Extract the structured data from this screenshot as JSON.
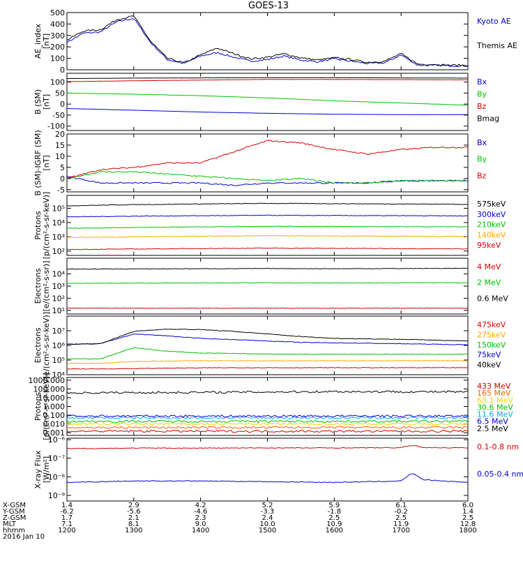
{
  "title": "GOES-13",
  "colors": {
    "black": "#000000",
    "blue": "#0000d0",
    "red": "#d00000",
    "green": "#00c000",
    "orange": "#ffa500",
    "yellow": "#e8d800",
    "cyan": "#00b0e0",
    "purple": "#8000a0"
  },
  "x_axis": {
    "row_labels": [
      "X-GSM",
      "Y-GSM",
      "Z-GSM",
      "MLT",
      "hhmm",
      "2016 Jan 10"
    ],
    "columns": [
      {
        "x": 1.4,
        "y": -6.2,
        "z": 1.7,
        "mlt": 7.1,
        "hhmm": "1200"
      },
      {
        "x": 2.9,
        "y": -5.6,
        "z": 2.1,
        "mlt": 8.1,
        "hhmm": "1300"
      },
      {
        "x": 4.2,
        "y": -4.6,
        "z": 2.3,
        "mlt": 9.0,
        "hhmm": "1400"
      },
      {
        "x": 5.2,
        "y": -3.3,
        "z": 2.4,
        "mlt": 10.0,
        "hhmm": "1500"
      },
      {
        "x": 5.9,
        "y": -1.8,
        "z": 2.5,
        "mlt": 10.9,
        "hhmm": "1600"
      },
      {
        "x": 6.1,
        "y": -0.2,
        "z": 2.5,
        "mlt": 11.9,
        "hhmm": "1700"
      },
      {
        "x": 6.0,
        "y": 1.4,
        "z": 2.5,
        "mlt": 12.8,
        "hhmm": "1800"
      }
    ]
  },
  "chart_data": [
    {
      "type": "line",
      "ylabel": "AE_index\n[nT]",
      "ylim": [
        0,
        500
      ],
      "scale": "linear",
      "yticks": [
        "0",
        "100",
        "200",
        "300",
        "400",
        "500"
      ],
      "series": [
        {
          "name": "Kyoto AE",
          "color": "#0000d0",
          "x": [
            1200,
            1215,
            1230,
            1245,
            1300,
            1315,
            1330,
            1345,
            1400,
            1415,
            1430,
            1445,
            1500,
            1515,
            1530,
            1545,
            1600,
            1615,
            1630,
            1645,
            1700,
            1715,
            1730,
            1745,
            1800
          ],
          "values": [
            240,
            320,
            330,
            420,
            450,
            240,
            90,
            55,
            120,
            150,
            110,
            75,
            90,
            120,
            85,
            70,
            95,
            75,
            55,
            60,
            130,
            40,
            40,
            35,
            35
          ]
        },
        {
          "name": "Themis AE",
          "color": "#000000",
          "x": [
            1200,
            1215,
            1230,
            1245,
            1300,
            1315,
            1330,
            1345,
            1400,
            1415,
            1430,
            1445,
            1500,
            1515,
            1530,
            1545,
            1600,
            1615,
            1630,
            1645,
            1700,
            1715,
            1730,
            1745,
            1800
          ],
          "values": [
            260,
            340,
            350,
            440,
            470,
            250,
            100,
            60,
            130,
            190,
            140,
            95,
            110,
            140,
            105,
            85,
            105,
            90,
            65,
            75,
            140,
            50,
            45,
            40,
            40
          ]
        }
      ]
    },
    {
      "type": "line",
      "ylabel": "B (SM)\n[nT]",
      "ylim": [
        -120,
        140
      ],
      "scale": "linear",
      "yticks": [
        "-100",
        "-50",
        "0",
        "50",
        "100"
      ],
      "series": [
        {
          "name": "Bx",
          "color": "#0000d0",
          "x": [
            1200,
            1300,
            1400,
            1500,
            1600,
            1700,
            1800
          ],
          "values": [
            -20,
            -28,
            -36,
            -42,
            -46,
            -48,
            -48
          ]
        },
        {
          "name": "By",
          "color": "#00c000",
          "x": [
            1200,
            1300,
            1400,
            1500,
            1600,
            1700,
            1800
          ],
          "values": [
            50,
            45,
            38,
            28,
            15,
            5,
            -5
          ]
        },
        {
          "name": "Bz",
          "color": "#d00000",
          "x": [
            1200,
            1300,
            1400,
            1500,
            1600,
            1700,
            1800
          ],
          "values": [
            102,
            106,
            109,
            112,
            112,
            111,
            110
          ]
        },
        {
          "name": "Bmag",
          "color": "#000000",
          "x": [
            1200,
            1300,
            1400,
            1500,
            1600,
            1700,
            1800
          ],
          "values": [
            116,
            118,
            119,
            120,
            120,
            119,
            118
          ]
        }
      ]
    },
    {
      "type": "line",
      "ylabel": "B (SM)-IGRF (SM)\n[nT]",
      "ylim": [
        -6,
        20
      ],
      "scale": "linear",
      "yticks": [
        "-5",
        "0",
        "5",
        "10",
        "15",
        "20"
      ],
      "series": [
        {
          "name": "Bx",
          "color": "#0000d0",
          "x": [
            1200,
            1230,
            1300,
            1330,
            1400,
            1430,
            1500,
            1530,
            1600,
            1630,
            1700,
            1730,
            1800
          ],
          "values": [
            1,
            -2,
            -2,
            -2,
            -2,
            -3,
            -2,
            -2,
            -2,
            -2,
            -1,
            -1,
            -1
          ]
        },
        {
          "name": "By",
          "color": "#00c000",
          "x": [
            1200,
            1230,
            1300,
            1330,
            1400,
            1430,
            1500,
            1530,
            1600,
            1630,
            1700,
            1730,
            1800
          ],
          "values": [
            0,
            3,
            3,
            2,
            1,
            0,
            -1,
            0,
            -2,
            -2,
            -1,
            -1,
            -1
          ]
        },
        {
          "name": "Bz",
          "color": "#d00000",
          "x": [
            1200,
            1230,
            1300,
            1330,
            1400,
            1430,
            1500,
            1530,
            1600,
            1630,
            1700,
            1730,
            1800
          ],
          "values": [
            0,
            4,
            5,
            7,
            7,
            12,
            17,
            16,
            13,
            11,
            13,
            14,
            14
          ]
        }
      ]
    },
    {
      "type": "line",
      "ylabel": "Protons\n[p/(cm²-s-sr-keV)]",
      "ylim": [
        50,
        800000
      ],
      "scale": "log",
      "yticks": [
        "10²",
        "10³",
        "10⁴",
        "10⁵"
      ],
      "series": [
        {
          "name": "575keV",
          "color": "#000000",
          "x": [
            1200,
            1300,
            1400,
            1500,
            1600,
            1700,
            1800
          ],
          "values": [
            150000,
            180000,
            200000,
            220000,
            210000,
            200000,
            190000
          ]
        },
        {
          "name": "300keV",
          "color": "#0000d0",
          "x": [
            1200,
            1300,
            1400,
            1500,
            1600,
            1700,
            1800
          ],
          "values": [
            25000,
            28000,
            30000,
            32000,
            31000,
            30000,
            29000
          ]
        },
        {
          "name": "210keV",
          "color": "#00c000",
          "x": [
            1200,
            1300,
            1400,
            1500,
            1600,
            1700,
            1800
          ],
          "values": [
            4000,
            4500,
            5000,
            5500,
            5300,
            5100,
            5000
          ]
        },
        {
          "name": "140keV",
          "color": "#ffa500",
          "x": [
            1200,
            1300,
            1400,
            1500,
            1600,
            1700,
            1800
          ],
          "values": [
            900,
            1000,
            1100,
            1200,
            1150,
            1100,
            1050
          ]
        },
        {
          "name": "95keV",
          "color": "#d00000",
          "x": [
            1200,
            1300,
            1400,
            1500,
            1600,
            1700,
            1800
          ],
          "values": [
            130,
            140,
            150,
            160,
            155,
            150,
            145
          ]
        }
      ]
    },
    {
      "type": "line",
      "ylabel": "Electrons\n[e/(cm²-s-sr)]",
      "ylim": [
        5,
        200000
      ],
      "scale": "log",
      "yticks": [
        "10¹",
        "10²",
        "10³",
        "10⁴"
      ],
      "series": [
        {
          "name": "4 MeV",
          "color": "#d00000",
          "x": [
            1200,
            1300,
            1400,
            1500,
            1600,
            1700,
            1800
          ],
          "values": [
            15,
            15,
            15,
            15,
            15,
            15,
            15
          ]
        },
        {
          "name": "2 MeV",
          "color": "#00c000",
          "x": [
            1200,
            1300,
            1400,
            1500,
            1600,
            1700,
            1800
          ],
          "values": [
            1700,
            1750,
            1800,
            1850,
            1800,
            1850,
            1900
          ]
        },
        {
          "name": "0.6 MeV",
          "color": "#000000",
          "x": [
            1200,
            1300,
            1400,
            1500,
            1600,
            1700,
            1800
          ],
          "values": [
            25000,
            26000,
            27000,
            28000,
            27000,
            28000,
            29000
          ]
        }
      ]
    },
    {
      "type": "line",
      "ylabel": "Electrons\n[e/(cm²-s-sr-keV)]",
      "ylim": [
        10000,
        100000000
      ],
      "scale": "log",
      "yticks": [
        "10⁴",
        "10⁵",
        "10⁶",
        "10⁷"
      ],
      "series": [
        {
          "name": "475keV",
          "color": "#d00000",
          "x": [
            1200,
            1230,
            1300,
            1330,
            1400,
            1430,
            1500,
            1530,
            1600,
            1630,
            1700,
            1730,
            1800
          ],
          "values": [
            25000,
            25000,
            26000,
            28000,
            29000,
            30000,
            30000,
            30000,
            30000,
            30000,
            30000,
            30000,
            30000
          ]
        },
        {
          "name": "275keV",
          "color": "#ffa500",
          "x": [
            1200,
            1230,
            1300,
            1330,
            1400,
            1430,
            1500,
            1530,
            1600,
            1630,
            1700,
            1730,
            1800
          ],
          "values": [
            60000,
            60000,
            80000,
            85000,
            90000,
            90000,
            90000,
            90000,
            90000,
            90000,
            90000,
            90000,
            90000
          ]
        },
        {
          "name": "150keV",
          "color": "#00c000",
          "x": [
            1200,
            1230,
            1300,
            1330,
            1400,
            1430,
            1500,
            1530,
            1600,
            1630,
            1700,
            1730,
            1800
          ],
          "values": [
            120000,
            120000,
            700000,
            400000,
            300000,
            280000,
            260000,
            250000,
            250000,
            250000,
            250000,
            250000,
            250000
          ]
        },
        {
          "name": "75keV",
          "color": "#0000d0",
          "x": [
            1200,
            1230,
            1300,
            1330,
            1400,
            1430,
            1500,
            1530,
            1600,
            1630,
            1700,
            1730,
            1800
          ],
          "values": [
            1200000,
            1300000,
            6000000,
            4500000,
            3000000,
            2500000,
            2000000,
            1600000,
            1500000,
            1400000,
            1300000,
            1200000,
            1100000
          ]
        },
        {
          "name": "40keV",
          "color": "#000000",
          "x": [
            1200,
            1230,
            1300,
            1330,
            1400,
            1430,
            1500,
            1530,
            1600,
            1630,
            1700,
            1730,
            1800
          ],
          "values": [
            1200000,
            1300000,
            9000000,
            13000000,
            12000000,
            9000000,
            6000000,
            4000000,
            3000000,
            2800000,
            2600000,
            2300000,
            2000000
          ]
        }
      ]
    },
    {
      "type": "line",
      "ylabel": "Protons\n[p/(cm²-s-sr-keV)]",
      "ylim": [
        0.0005,
        2000
      ],
      "scale": "log",
      "yticks": [
        "0.001",
        "0.010",
        "0.100",
        "1.000",
        "10.000",
        "100.000",
        "1000.000"
      ],
      "series": [
        {
          "name": "433 MeV",
          "color": "#d00000",
          "x": [
            1200,
            1800
          ],
          "values": [
            0.0015,
            0.0015
          ]
        },
        {
          "name": "165 MeV",
          "color": "#ff6000",
          "x": [
            1200,
            1800
          ],
          "values": [
            0.004,
            0.004
          ]
        },
        {
          "name": "63.1 MeV",
          "color": "#e8d800",
          "x": [
            1200,
            1800
          ],
          "values": [
            0.01,
            0.01
          ]
        },
        {
          "name": "30.6 MeV",
          "color": "#00c000",
          "x": [
            1200,
            1800
          ],
          "values": [
            0.02,
            0.02
          ]
        },
        {
          "name": "11.6 MeV",
          "color": "#00b0e0",
          "x": [
            1200,
            1800
          ],
          "values": [
            0.05,
            0.05
          ]
        },
        {
          "name": "6.5 MeV",
          "color": "#0000d0",
          "x": [
            1200,
            1800
          ],
          "values": [
            0.08,
            0.08
          ]
        },
        {
          "name": "2.5 MeV",
          "color": "#000000",
          "x": [
            1200,
            1300,
            1400,
            1500,
            1600,
            1700,
            1800
          ],
          "values": [
            35,
            38,
            40,
            45,
            50,
            48,
            45
          ]
        }
      ]
    },
    {
      "type": "line",
      "ylabel": "X-ray Flux\n[W/m²]",
      "ylim": [
        1e-09,
        1e-08
      ],
      "scale": "log",
      "yticks": [
        "10⁻⁹",
        "10⁻⁸",
        "10⁻⁷",
        "10⁻⁶"
      ],
      "series": [
        {
          "name": "0.1-0.8 nm",
          "color": "#d00000",
          "x": [
            1200,
            1300,
            1400,
            1500,
            1600,
            1700,
            1710,
            1720,
            1800
          ],
          "values": [
            3.3e-07,
            3.5e-07,
            3.5e-07,
            3.6e-07,
            3.6e-07,
            3.7e-07,
            5e-07,
            3.8e-07,
            3.6e-07
          ]
        },
        {
          "name": "0.05-0.4 nm",
          "color": "#0000d0",
          "x": [
            1200,
            1300,
            1400,
            1500,
            1600,
            1700,
            1710,
            1720,
            1800
          ],
          "values": [
            5e-09,
            6e-09,
            6e-09,
            5.5e-09,
            5e-09,
            6e-09,
            1.6e-08,
            7e-09,
            5e-09
          ]
        }
      ]
    }
  ]
}
